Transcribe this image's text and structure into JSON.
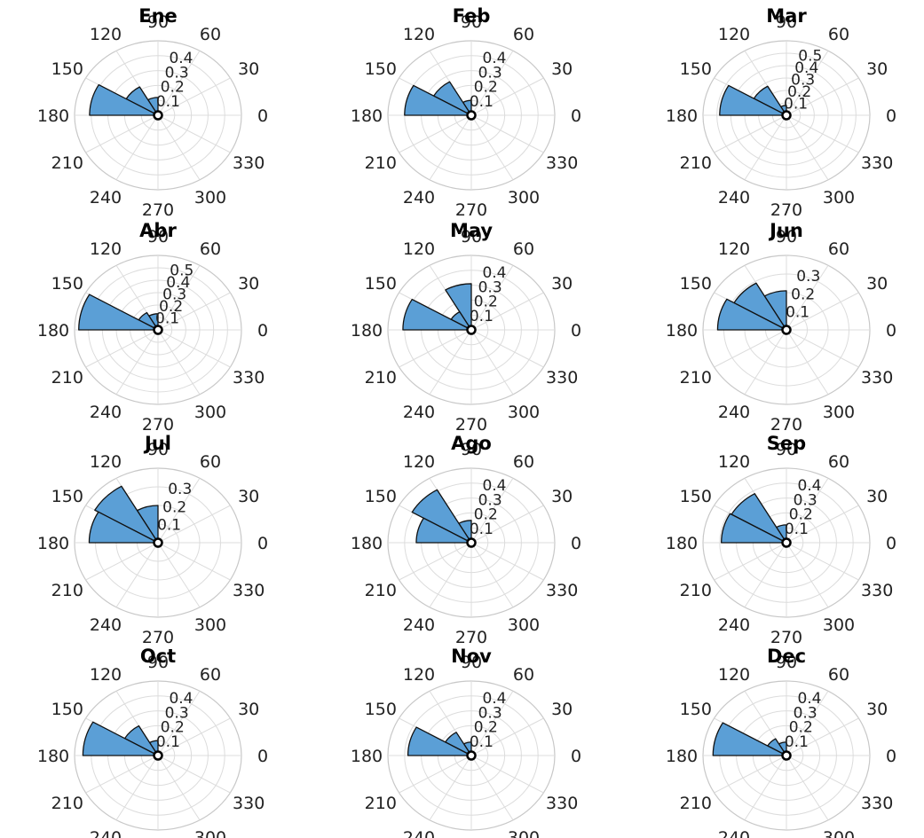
{
  "chart_data": [
    {
      "type": "polar-histogram",
      "title": "Ene",
      "rticks": [
        "0.1",
        "0.2",
        "0.3",
        "0.4"
      ],
      "rmax": 0.5,
      "bins": [
        {
          "angle": 105,
          "value": 0.12
        },
        {
          "angle": 135,
          "value": 0.22
        },
        {
          "angle": 165,
          "value": 0.41
        }
      ]
    },
    {
      "type": "polar-histogram",
      "title": "Feb",
      "rticks": [
        "0.1",
        "0.2",
        "0.3",
        "0.4"
      ],
      "rmax": 0.5,
      "bins": [
        {
          "angle": 105,
          "value": 0.1
        },
        {
          "angle": 135,
          "value": 0.26
        },
        {
          "angle": 165,
          "value": 0.4
        }
      ]
    },
    {
      "type": "polar-histogram",
      "title": "Mar",
      "rticks": [
        "0.1",
        "0.2",
        "0.3",
        "0.4",
        "0.5"
      ],
      "rmax": 0.6,
      "bins": [
        {
          "angle": 105,
          "value": 0.08
        },
        {
          "angle": 135,
          "value": 0.27
        },
        {
          "angle": 165,
          "value": 0.48
        }
      ]
    },
    {
      "type": "polar-histogram",
      "title": "Abr",
      "rticks": [
        "0.1",
        "0.2",
        "0.3",
        "0.4",
        "0.5"
      ],
      "rmax": 0.6,
      "bins": [
        {
          "angle": 105,
          "value": 0.13
        },
        {
          "angle": 135,
          "value": 0.16
        },
        {
          "angle": 165,
          "value": 0.57
        }
      ]
    },
    {
      "type": "polar-histogram",
      "title": "May",
      "rticks": [
        "0.1",
        "0.2",
        "0.3",
        "0.4"
      ],
      "rmax": 0.5,
      "bins": [
        {
          "angle": 105,
          "value": 0.31
        },
        {
          "angle": 135,
          "value": 0.14
        },
        {
          "angle": 165,
          "value": 0.41
        }
      ]
    },
    {
      "type": "polar-histogram",
      "title": "Jun",
      "rticks": [
        "0.1",
        "0.2",
        "0.3"
      ],
      "rmax": 0.4,
      "bins": [
        {
          "angle": 105,
          "value": 0.21
        },
        {
          "angle": 135,
          "value": 0.29
        },
        {
          "angle": 165,
          "value": 0.33
        }
      ]
    },
    {
      "type": "polar-histogram",
      "title": "Jul",
      "rticks": [
        "0.1",
        "0.2",
        "0.3"
      ],
      "rmax": 0.4,
      "bins": [
        {
          "angle": 105,
          "value": 0.2
        },
        {
          "angle": 135,
          "value": 0.35
        },
        {
          "angle": 165,
          "value": 0.33
        }
      ]
    },
    {
      "type": "polar-histogram",
      "title": "Ago",
      "rticks": [
        "0.1",
        "0.2",
        "0.3",
        "0.4"
      ],
      "rmax": 0.5,
      "bins": [
        {
          "angle": 105,
          "value": 0.15
        },
        {
          "angle": 135,
          "value": 0.41
        },
        {
          "angle": 165,
          "value": 0.33
        }
      ]
    },
    {
      "type": "polar-histogram",
      "title": "Sep",
      "rticks": [
        "0.1",
        "0.2",
        "0.3",
        "0.4"
      ],
      "rmax": 0.5,
      "bins": [
        {
          "angle": 105,
          "value": 0.12
        },
        {
          "angle": 135,
          "value": 0.38
        },
        {
          "angle": 165,
          "value": 0.39
        }
      ]
    },
    {
      "type": "polar-histogram",
      "title": "Oct",
      "rticks": [
        "0.1",
        "0.2",
        "0.3",
        "0.4"
      ],
      "rmax": 0.5,
      "bins": [
        {
          "angle": 105,
          "value": 0.1
        },
        {
          "angle": 135,
          "value": 0.23
        },
        {
          "angle": 165,
          "value": 0.45
        }
      ]
    },
    {
      "type": "polar-histogram",
      "title": "Nov",
      "rticks": [
        "0.1",
        "0.2",
        "0.3",
        "0.4"
      ],
      "rmax": 0.5,
      "bins": [
        {
          "angle": 105,
          "value": 0.09
        },
        {
          "angle": 135,
          "value": 0.18
        },
        {
          "angle": 165,
          "value": 0.38
        }
      ]
    },
    {
      "type": "polar-histogram",
      "title": "Dec",
      "rticks": [
        "0.1",
        "0.2",
        "0.3",
        "0.4"
      ],
      "rmax": 0.5,
      "bins": [
        {
          "angle": 105,
          "value": 0.09
        },
        {
          "angle": 135,
          "value": 0.13
        },
        {
          "angle": 165,
          "value": 0.44
        }
      ]
    }
  ],
  "angle_ticks": [
    "0",
    "30",
    "60",
    "90",
    "120",
    "150",
    "180",
    "210",
    "240",
    "270",
    "300",
    "330"
  ],
  "colors": {
    "bar_fill": "#5b9fd6",
    "bar_edge": "#111111",
    "grid": "#dcdcdc"
  }
}
